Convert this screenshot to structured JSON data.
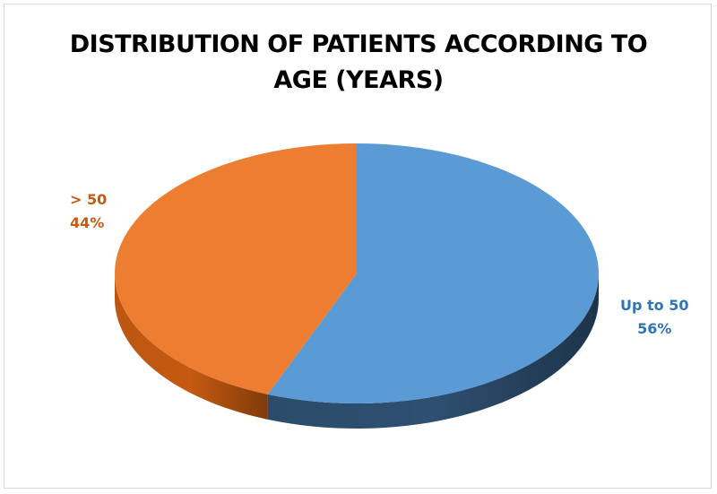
{
  "chart_data": {
    "type": "pie",
    "style": "3d",
    "title": "DISTRIBUTION OF PATIENTS ACCORDING TO AGE (YEARS)",
    "title_lines": [
      "DISTRIBUTION OF PATIENTS ACCORDING TO",
      "AGE (YEARS)"
    ],
    "slices": [
      {
        "label": "Up to 50",
        "value": 56,
        "value_label": "56%",
        "color": "#5b9bd5",
        "side_color": "#2e4f70",
        "label_color": "#2e75b6"
      },
      {
        "label": "> 50",
        "value": 44,
        "value_label": "44%",
        "color": "#ed7d31",
        "side_color": "#c55a11",
        "label_color": "#c55a11"
      }
    ]
  }
}
